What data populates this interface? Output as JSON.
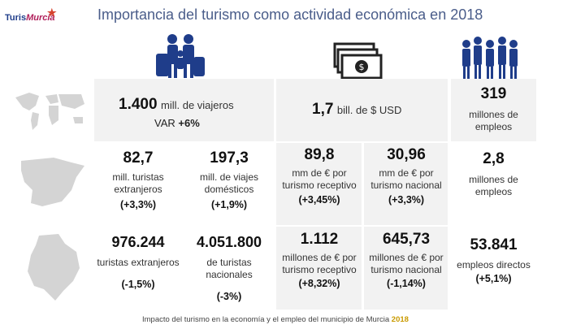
{
  "header": {
    "logo_text_1": "Turis",
    "logo_text_2": "Murcia",
    "title": "Importancia del turismo como actividad económica en 2018"
  },
  "icons": {
    "family": "family-travelers-icon",
    "money": "money-bills-icon",
    "workers": "workers-group-icon",
    "world": "world-map-icon",
    "spain": "spain-map-icon",
    "murcia": "murcia-region-map-icon"
  },
  "world_row": {
    "travelers_value": "1.400",
    "travelers_unit": "mill. de viajeros",
    "travelers_var_label": "VAR",
    "travelers_var_value": "+6%",
    "revenue_value": "1,7",
    "revenue_unit": "bill. de $ USD",
    "jobs_value": "319",
    "jobs_unit": "millones de empleos"
  },
  "spain_row": {
    "foreign_value": "82,7",
    "foreign_unit": "mill. turistas extranjeros",
    "foreign_change": "(+3,3%)",
    "domestic_value": "197,3",
    "domestic_unit": "mill. de viajes domésticos",
    "domestic_change": "(+1,9%)",
    "receptive_value": "89,8",
    "receptive_unit": "mm de € por turismo receptivo",
    "receptive_change": "(+3,45%)",
    "national_value": "30,96",
    "national_unit": "mm de € por turismo nacional",
    "national_change": "(+3,3%)",
    "jobs_value": "2,8",
    "jobs_unit": "millones de empleos"
  },
  "murcia_row": {
    "foreign_value": "976.244",
    "foreign_unit": "turistas extranjeros",
    "foreign_change": "(-1,5%)",
    "national_tourists_value": "4.051.800",
    "national_tourists_unit": "de turistas nacionales",
    "national_tourists_change": "(-3%)",
    "receptive_value": "1.112",
    "receptive_unit": "millones de € por turismo receptivo",
    "receptive_change": "(+8,32%)",
    "national_value": "645,73",
    "national_unit": "millones de € por turismo nacional",
    "national_change": "(-1,14%)",
    "jobs_value": "53.841",
    "jobs_unit": "empleos directos",
    "jobs_change": "(+5,1%)"
  },
  "footer": {
    "text": "Impacto del turismo en la economía y el empleo del municipio de Murcia",
    "year": "2018"
  },
  "colors": {
    "panel": "#f2f2f2",
    "icon_blue": "#1f3d8a",
    "title": "#4a5d8a",
    "footer_year": "#c99a00"
  }
}
